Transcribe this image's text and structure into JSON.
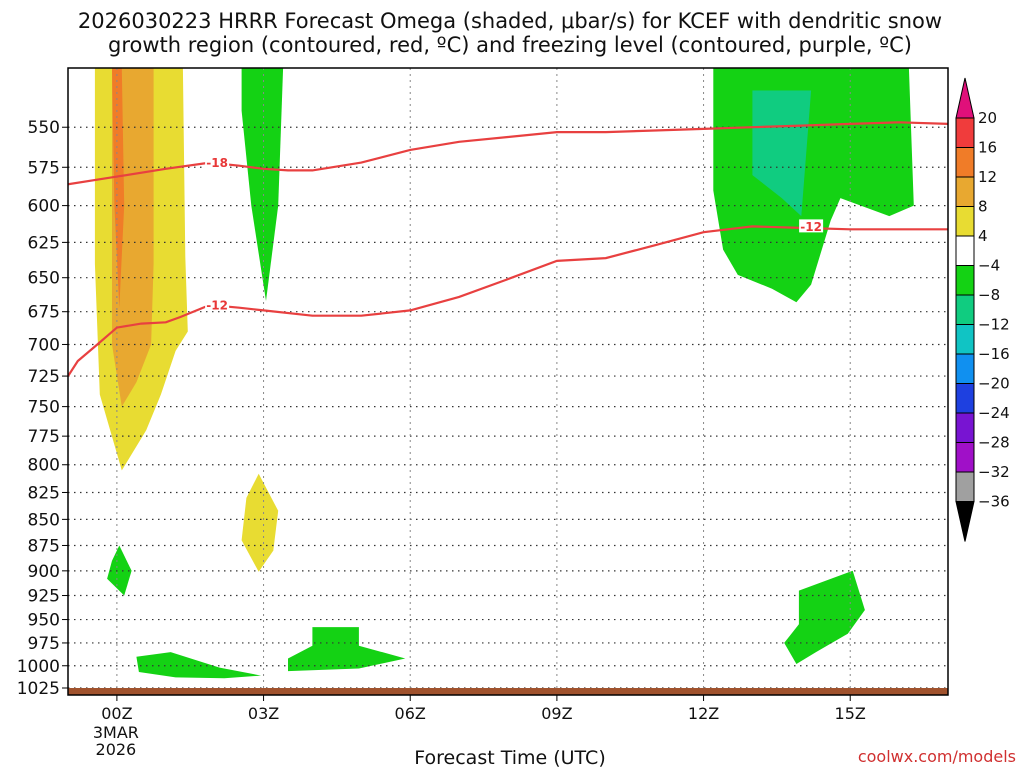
{
  "title": {
    "line1": "2026030223 HRRR Forecast Omega (shaded, μbar/s) for KCEF with dendritic snow",
    "line2": "growth region (contoured, red, ºC) and freezing level (contoured, purple, ºC)"
  },
  "credit": "coolwx.com/models",
  "colors": {
    "contour_red": "#e84040",
    "ground": "#a0522d",
    "frame": "#000000"
  },
  "chart_data": {
    "type": "heatmap",
    "xlabel": "Forecast Time (UTC)",
    "ylabel": "",
    "x_range_hours": [
      -1,
      17
    ],
    "y_range_mb": [
      1033,
      515
    ],
    "y_scale": "log-pressure",
    "grid": true,
    "x_ticks": [
      {
        "hour": 0,
        "label": "00Z",
        "sub1": "3MAR",
        "sub2": "2026"
      },
      {
        "hour": 3,
        "label": "03Z"
      },
      {
        "hour": 6,
        "label": "06Z"
      },
      {
        "hour": 9,
        "label": "09Z"
      },
      {
        "hour": 12,
        "label": "12Z"
      },
      {
        "hour": 15,
        "label": "15Z"
      }
    ],
    "y_ticks": [
      550,
      575,
      600,
      625,
      650,
      675,
      700,
      725,
      750,
      775,
      800,
      825,
      850,
      875,
      900,
      925,
      950,
      975,
      1000,
      1025
    ],
    "colorbar": {
      "levels": [
        20,
        16,
        12,
        8,
        4,
        -4,
        -8,
        -12,
        -16,
        -20,
        -24,
        -28,
        -32,
        -36
      ],
      "colors": {
        "above_20": "#e0107a",
        "16_20": "#f03c3c",
        "12_16": "#f07c28",
        "8_12": "#e8a830",
        "4_8": "#e8dc32",
        "-4_4": "#ffffff",
        "-8_-4": "#14d214",
        "-12_-8": "#10cc80",
        "-16_-12": "#10c4c4",
        "-20_-16": "#1090f0",
        "-24_-20": "#1e40e0",
        "-28_-24": "#7814d2",
        "-32_-28": "#a010c8",
        "-36_-32": "#a0a0a0",
        "below_-36": "#000000"
      }
    },
    "shaded_regions": [
      {
        "band": "4_8",
        "polygon": [
          [
            -0.45,
            515
          ],
          [
            1.35,
            515
          ],
          [
            1.4,
            635
          ],
          [
            1.45,
            690
          ],
          [
            1.2,
            705
          ],
          [
            0.9,
            740
          ],
          [
            0.6,
            770
          ],
          [
            0.1,
            805
          ],
          [
            -0.35,
            740
          ],
          [
            -0.45,
            640
          ]
        ]
      },
      {
        "band": "8_12",
        "polygon": [
          [
            -0.1,
            515
          ],
          [
            0.75,
            515
          ],
          [
            0.75,
            640
          ],
          [
            0.7,
            700
          ],
          [
            0.4,
            730
          ],
          [
            0.1,
            750
          ],
          [
            -0.1,
            700
          ],
          [
            -0.1,
            560
          ]
        ]
      },
      {
        "band": "12_16",
        "polygon": [
          [
            -0.1,
            515
          ],
          [
            0.1,
            515
          ],
          [
            0.15,
            600
          ],
          [
            0.05,
            672
          ],
          [
            -0.05,
            600
          ]
        ]
      },
      {
        "band": "-8_-4",
        "polygon": [
          [
            2.55,
            515
          ],
          [
            3.4,
            515
          ],
          [
            3.3,
            600
          ],
          [
            3.05,
            667
          ],
          [
            2.75,
            600
          ],
          [
            2.55,
            540
          ]
        ]
      },
      {
        "band": "4_8",
        "polygon": [
          [
            2.9,
            808
          ],
          [
            3.3,
            842
          ],
          [
            3.2,
            880
          ],
          [
            2.9,
            901
          ],
          [
            2.55,
            870
          ],
          [
            2.65,
            830
          ]
        ]
      },
      {
        "band": "-8_-4",
        "polygon": [
          [
            0.05,
            875
          ],
          [
            0.3,
            900
          ],
          [
            0.15,
            925
          ],
          [
            -0.2,
            908
          ],
          [
            -0.1,
            890
          ]
        ]
      },
      {
        "band": "-8_-4",
        "polygon": [
          [
            0.4,
            990
          ],
          [
            1.1,
            985
          ],
          [
            2.1,
            1002
          ],
          [
            2.95,
            1011
          ],
          [
            2.2,
            1014
          ],
          [
            1.2,
            1013
          ],
          [
            0.45,
            1007
          ]
        ]
      },
      {
        "band": "-8_-4",
        "polygon": [
          [
            4.0,
            958
          ],
          [
            4.95,
            958
          ],
          [
            4.95,
            978
          ],
          [
            5.9,
            992
          ],
          [
            4.95,
            1003
          ],
          [
            3.5,
            1006
          ],
          [
            3.5,
            992
          ],
          [
            4.0,
            978
          ]
        ]
      },
      {
        "band": "-8_-4",
        "polygon": [
          [
            12.2,
            515
          ],
          [
            16.2,
            515
          ],
          [
            16.3,
            600
          ],
          [
            15.8,
            607
          ],
          [
            14.8,
            595
          ],
          [
            14.6,
            610
          ],
          [
            14.2,
            655
          ],
          [
            13.9,
            668
          ],
          [
            13.4,
            658
          ],
          [
            12.7,
            648
          ],
          [
            12.4,
            630
          ],
          [
            12.2,
            590
          ]
        ]
      },
      {
        "band": "-12_-8",
        "polygon": [
          [
            13.0,
            528
          ],
          [
            14.2,
            528
          ],
          [
            14.0,
            607
          ],
          [
            13.6,
            595
          ],
          [
            13.0,
            580
          ]
        ]
      },
      {
        "band": "-8_-4",
        "polygon": [
          [
            15.05,
            900
          ],
          [
            15.3,
            940
          ],
          [
            14.95,
            965
          ],
          [
            14.3,
            985
          ],
          [
            13.9,
            998
          ],
          [
            13.65,
            975
          ],
          [
            13.95,
            955
          ],
          [
            13.95,
            920
          ]
        ]
      }
    ],
    "series": [
      {
        "name": "-18",
        "x": [
          -1,
          0,
          1,
          1.9,
          2.5,
          3,
          3.5,
          4,
          5,
          6,
          7,
          8,
          9,
          10,
          11,
          12,
          13,
          14,
          15,
          16,
          17
        ],
        "y": [
          586,
          581,
          576,
          572,
          574,
          576,
          577,
          577,
          572,
          564,
          559,
          556,
          553,
          553,
          552,
          551,
          550,
          549,
          548,
          547,
          548
        ]
      },
      {
        "name": "-12",
        "x": [
          -1,
          -0.8,
          -0.4,
          0,
          0.5,
          1,
          1.3,
          1.9,
          2.5,
          3,
          4,
          5,
          6,
          7,
          8,
          9,
          10,
          11,
          12,
          13,
          14,
          15,
          16,
          17
        ],
        "y": [
          725,
          713,
          700,
          687,
          684,
          683,
          679,
          670,
          672,
          674,
          678,
          678,
          674,
          664,
          651,
          638,
          636,
          627,
          618,
          614,
          615,
          616,
          616,
          616
        ]
      }
    ],
    "contour_labels": [
      {
        "text": "-18",
        "x": 2.05,
        "y": 572
      },
      {
        "text": "-12",
        "x": 2.05,
        "y": 670
      },
      {
        "text": "-12",
        "x": 14.2,
        "y": 614
      }
    ]
  }
}
